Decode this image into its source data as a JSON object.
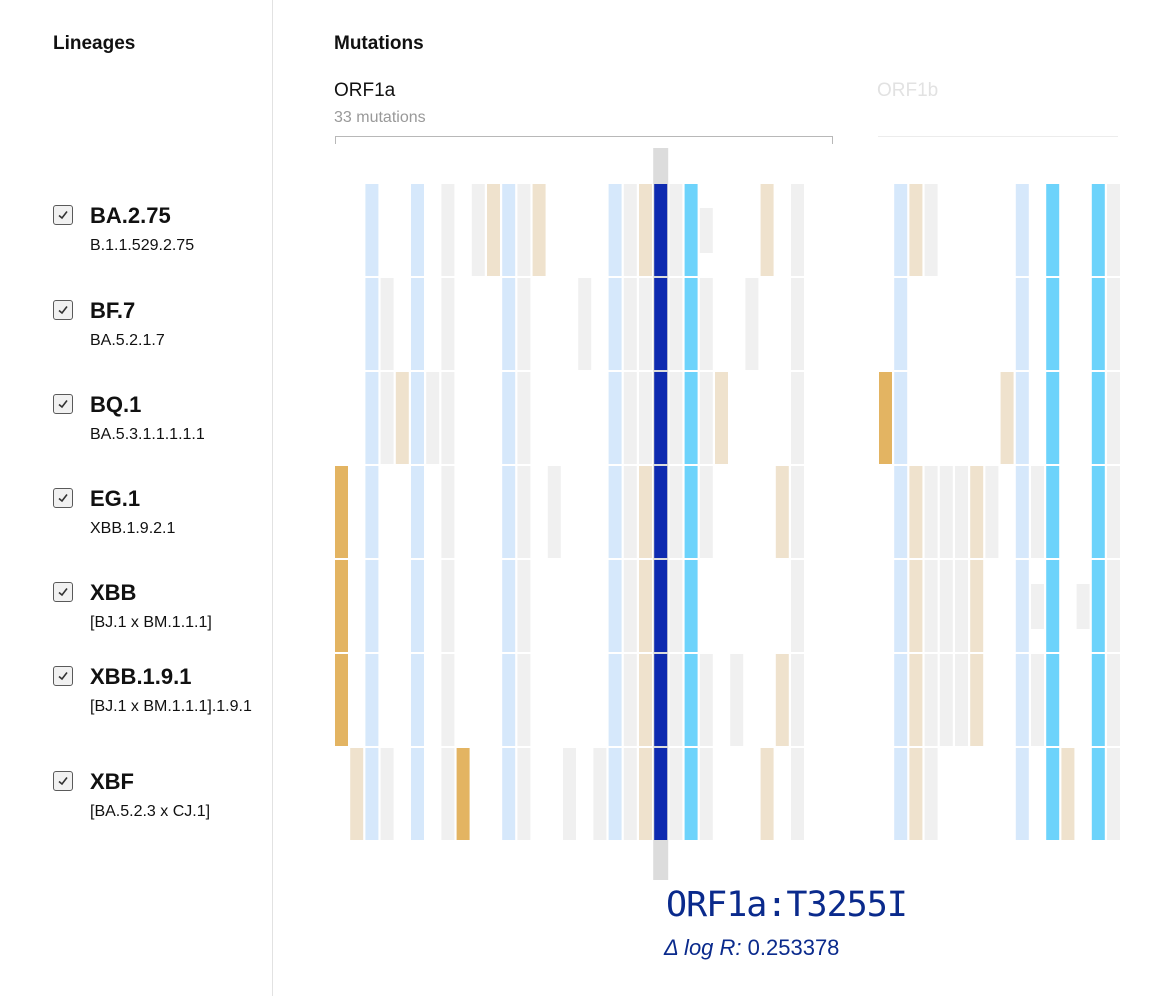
{
  "sidebar": {
    "title": "Lineages",
    "lineages": [
      {
        "name": "BA.2.75",
        "pango": "B.1.1.529.2.75",
        "checked": true
      },
      {
        "name": "BF.7",
        "pango": "BA.5.2.1.7",
        "checked": true
      },
      {
        "name": "BQ.1",
        "pango": "BA.5.3.1.1.1.1.1",
        "checked": true
      },
      {
        "name": "EG.1",
        "pango": "XBB.1.9.2.1",
        "checked": true
      },
      {
        "name": "XBB",
        "pango": "[BJ.1 x BM.1.1.1]",
        "checked": true
      },
      {
        "name": "XBB.1.9.1",
        "pango": "[BJ.1 x BM.1.1.1].1.9.1",
        "checked": true
      },
      {
        "name": "XBF",
        "pango": "[BA.5.2.3 x CJ.1]",
        "checked": true
      }
    ]
  },
  "main": {
    "title": "Mutations",
    "genes": [
      {
        "name": "ORF1a",
        "count_label": "33 mutations",
        "active": true
      },
      {
        "name": "ORF1b",
        "count_label": "",
        "active": false
      }
    ]
  },
  "colors": {
    "empty": "#f0f0f0",
    "pale_blue": "#d6e8fb",
    "pale_tan": "#efe2cd",
    "gold": "#e3b462",
    "cyan": "#6dd3fb",
    "dark_blue": "#0f2bb0",
    "highlight": "#dcdcdc",
    "selected_text": "#0a2a8c"
  },
  "heatmap": {
    "orf1a_columns": [
      {
        "r": [
          "n",
          "n",
          "n",
          "g",
          "g",
          "g",
          "n"
        ]
      },
      {
        "r": [
          "n",
          "n",
          "n",
          "n",
          "n",
          "n",
          "t"
        ]
      },
      {
        "r": [
          "b",
          "b",
          "b",
          "b",
          "b",
          "b",
          "b"
        ]
      },
      {
        "r": [
          "n",
          "e",
          "e",
          "n",
          "n",
          "n",
          "e"
        ]
      },
      {
        "r": [
          "n",
          "n",
          "t",
          "n",
          "n",
          "n",
          "n"
        ]
      },
      {
        "r": [
          "b",
          "b",
          "b",
          "b",
          "b",
          "b",
          "b"
        ]
      },
      {
        "r": [
          "n",
          "n",
          "e",
          "n",
          "n",
          "n",
          "n"
        ]
      },
      {
        "r": [
          "e",
          "e",
          "e",
          "e",
          "e",
          "e",
          "e"
        ]
      },
      {
        "r": [
          "n",
          "n",
          "n",
          "n",
          "n",
          "n",
          "g"
        ]
      },
      {
        "r": [
          "e",
          "n",
          "n",
          "n",
          "n",
          "n",
          "n"
        ]
      },
      {
        "r": [
          "t",
          "n",
          "n",
          "n",
          "n",
          "n",
          "n"
        ]
      },
      {
        "r": [
          "b",
          "b",
          "b",
          "b",
          "b",
          "b",
          "b"
        ]
      },
      {
        "r": [
          "e",
          "e",
          "e",
          "e",
          "e",
          "e",
          "e"
        ]
      },
      {
        "r": [
          "t",
          "n",
          "n",
          "n",
          "n",
          "n",
          "n"
        ]
      },
      {
        "r": [
          "n",
          "n",
          "n",
          "e",
          "n",
          "n",
          "n"
        ]
      },
      {
        "r": [
          "n",
          "n",
          "n",
          "n",
          "n",
          "n",
          "e"
        ]
      },
      {
        "r": [
          "n",
          "e",
          "n",
          "n",
          "n",
          "n",
          "n"
        ]
      },
      {
        "r": [
          "n",
          "n",
          "n",
          "n",
          "n",
          "n",
          "e"
        ]
      },
      {
        "r": [
          "b",
          "b",
          "b",
          "b",
          "b",
          "b",
          "b"
        ]
      },
      {
        "r": [
          "e",
          "e",
          "e",
          "e",
          "e",
          "e",
          "e"
        ]
      },
      {
        "r": [
          "t",
          "e",
          "e",
          "t",
          "t",
          "t",
          "t"
        ]
      },
      {
        "r": [
          "D",
          "D",
          "D",
          "D",
          "D",
          "D",
          "D"
        ]
      },
      {
        "r": [
          "e",
          "e",
          "e",
          "e",
          "e",
          "e",
          "e"
        ]
      },
      {
        "r": [
          "C",
          "C",
          "C",
          "C",
          "C",
          "C",
          "C"
        ]
      },
      {
        "r": [
          "es",
          "e",
          "e",
          "e",
          "n",
          "e",
          "e"
        ]
      },
      {
        "r": [
          "n",
          "n",
          "t",
          "n",
          "n",
          "n",
          "n"
        ]
      },
      {
        "r": [
          "n",
          "n",
          "n",
          "n",
          "n",
          "e",
          "n"
        ]
      },
      {
        "r": [
          "n",
          "e",
          "n",
          "n",
          "n",
          "n",
          "n"
        ]
      },
      {
        "r": [
          "t",
          "n",
          "n",
          "n",
          "n",
          "n",
          "t"
        ]
      },
      {
        "r": [
          "n",
          "n",
          "n",
          "t",
          "n",
          "t",
          "n"
        ]
      },
      {
        "r": [
          "e",
          "e",
          "e",
          "e",
          "e",
          "e",
          "e"
        ]
      }
    ],
    "orf1b_columns": [
      {
        "r": [
          "n",
          "n",
          "g",
          "n",
          "n",
          "n",
          "n"
        ]
      },
      {
        "r": [
          "b",
          "b",
          "b",
          "b",
          "b",
          "b",
          "b"
        ]
      },
      {
        "r": [
          "t",
          "n",
          "n",
          "t",
          "t",
          "t",
          "t"
        ]
      },
      {
        "r": [
          "e",
          "n",
          "n",
          "e",
          "e",
          "e",
          "e"
        ]
      },
      {
        "r": [
          "n",
          "n",
          "n",
          "e",
          "e",
          "e",
          "n"
        ]
      },
      {
        "r": [
          "n",
          "n",
          "n",
          "e",
          "e",
          "e",
          "n"
        ]
      },
      {
        "r": [
          "n",
          "n",
          "n",
          "t",
          "t",
          "t",
          "n"
        ]
      },
      {
        "r": [
          "n",
          "n",
          "n",
          "e",
          "n",
          "n",
          "n"
        ]
      },
      {
        "r": [
          "n",
          "n",
          "t",
          "n",
          "n",
          "n",
          "n"
        ]
      },
      {
        "r": [
          "b",
          "b",
          "b",
          "b",
          "b",
          "b",
          "b"
        ]
      },
      {
        "r": [
          "n",
          "n",
          "n",
          "e",
          "es",
          "e",
          "n"
        ]
      },
      {
        "r": [
          "C",
          "C",
          "C",
          "C",
          "C",
          "C",
          "C"
        ]
      },
      {
        "r": [
          "n",
          "n",
          "n",
          "n",
          "n",
          "n",
          "t"
        ]
      },
      {
        "r": [
          "n",
          "n",
          "n",
          "n",
          "es",
          "n",
          "n"
        ]
      },
      {
        "r": [
          "C",
          "C",
          "C",
          "C",
          "C",
          "C",
          "C"
        ]
      },
      {
        "r": [
          "e",
          "e",
          "e",
          "e",
          "e",
          "e",
          "e"
        ]
      }
    ]
  },
  "selected": {
    "mutation": "ORF1a:T3255I",
    "metric_label": "Δ log R:",
    "metric_value": "0.253378"
  }
}
